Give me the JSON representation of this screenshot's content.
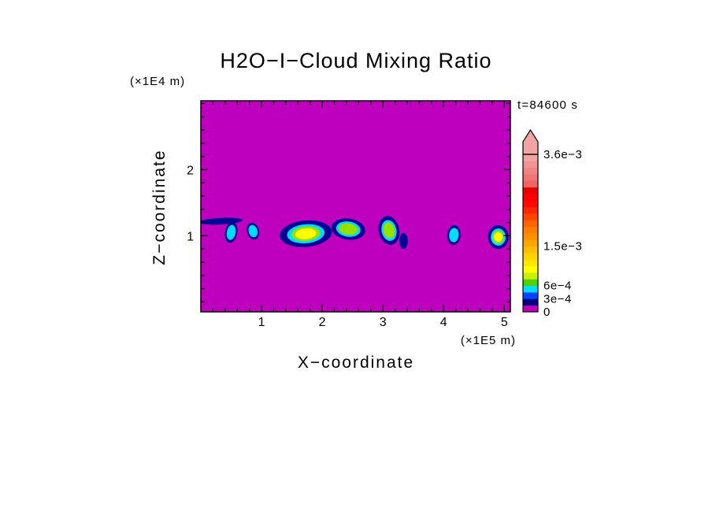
{
  "chart_data": {
    "type": "heatmap",
    "title": "H2O−I−Cloud Mixing Ratio",
    "xlabel": "X−coordinate",
    "zlabel": "Z−coordinate",
    "x_units_label": "(×1E5 m)",
    "z_units_label": "(×1E4 m)",
    "time_annotation": "t=84600 s",
    "background_color": "#BE00BE",
    "x_axis": {
      "min": 0,
      "max": 5.1,
      "major_ticks": [
        1,
        2,
        3,
        4,
        5
      ],
      "minor_step": 0.2
    },
    "z_axis": {
      "min": -0.15,
      "max": 3.04,
      "major_ticks": [
        1,
        2
      ],
      "minor_step": 0.2
    },
    "colorbar": {
      "max_level": 0.0036,
      "level_step": 0.00015,
      "colors": [
        "#BE00BE",
        "#000080",
        "#0046FF",
        "#00DCFF",
        "#50D200",
        "#C8F000",
        "#FFFF00",
        "#FFE600",
        "#FFD200",
        "#FFBE00",
        "#FFA500",
        "#FF9100",
        "#FF7D00",
        "#FF6400",
        "#FF4600",
        "#FF2800",
        "#FF0A00",
        "#FF0000",
        "#E60000",
        "#F06464",
        "#F07474",
        "#F08484",
        "#F09494",
        "#F0A4A4"
      ],
      "labels": [
        {
          "value": 0.0036,
          "text": "3.6e−3"
        },
        {
          "value": 0.0015,
          "text": "1.5e−3"
        },
        {
          "value": 0.0006,
          "text": "6e−4"
        },
        {
          "value": 0.0003,
          "text": "3e−4"
        },
        {
          "value": 0,
          "text": "0"
        }
      ]
    },
    "cloud_render_tiers": [
      {
        "min_value": 0.0,
        "color": "#000096",
        "scale": 1.0
      },
      {
        "min_value": 0.0006,
        "color": "#00DCFF",
        "scale": 0.72
      },
      {
        "min_value": 0.00075,
        "color": "#96E100",
        "scale": 0.55
      },
      {
        "min_value": 0.00105,
        "color": "#FFFF00",
        "scale": 0.4
      }
    ],
    "clouds": [
      {
        "x": 0.33,
        "z": 1.22,
        "rx": 0.36,
        "rz": 0.05,
        "rot": -3,
        "max_value": 0.0003
      },
      {
        "x": 0.5,
        "z": 1.05,
        "rx": 0.1,
        "rz": 0.16,
        "rot": 10,
        "max_value": 0.0006
      },
      {
        "x": 0.86,
        "z": 1.07,
        "rx": 0.1,
        "rz": 0.13,
        "rot": -15,
        "max_value": 0.0006
      },
      {
        "x": 1.73,
        "z": 1.03,
        "rx": 0.43,
        "rz": 0.2,
        "rot": -5,
        "max_value": 0.00105
      },
      {
        "x": 2.43,
        "z": 1.1,
        "rx": 0.28,
        "rz": 0.16,
        "rot": 8,
        "max_value": 0.00075
      },
      {
        "x": 3.1,
        "z": 1.08,
        "rx": 0.17,
        "rz": 0.22,
        "rot": -12,
        "max_value": 0.00075
      },
      {
        "x": 3.34,
        "z": 0.92,
        "rx": 0.07,
        "rz": 0.12,
        "rot": 0,
        "max_value": 0.0003
      },
      {
        "x": 4.17,
        "z": 1.01,
        "rx": 0.11,
        "rz": 0.15,
        "rot": 5,
        "max_value": 0.0006
      },
      {
        "x": 4.9,
        "z": 0.98,
        "rx": 0.17,
        "rz": 0.18,
        "rot": 0,
        "max_value": 0.00105
      }
    ]
  }
}
